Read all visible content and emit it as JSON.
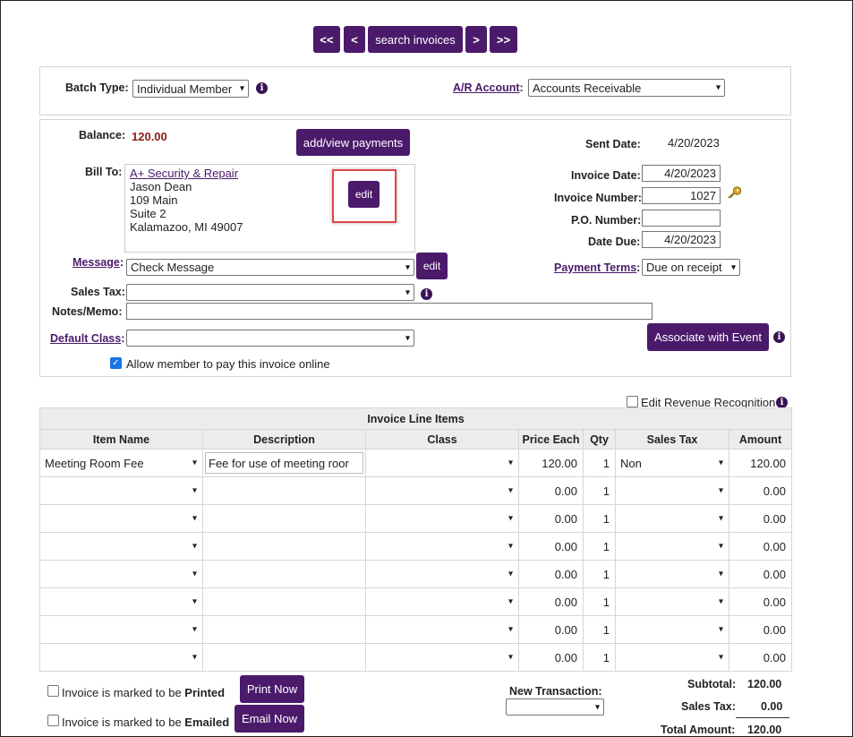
{
  "nav": {
    "first": "<<",
    "prev": "<",
    "search": "search invoices",
    "next": ">",
    "last": ">>"
  },
  "batch": {
    "batch_type_label": "Batch Type:",
    "batch_type_value": "Individual Member",
    "ar_account_label": "A/R Account",
    "ar_account_colon": ":",
    "ar_account_value": "Accounts Receivable"
  },
  "invoice": {
    "balance_label": "Balance:",
    "balance_value": "120.00",
    "add_payments": "add/view payments",
    "bill_to_label": "Bill To:",
    "bill_to_company": "A+ Security & Repair",
    "bill_to_lines": [
      "Jason Dean",
      "109 Main",
      "Suite 2",
      "Kalamazoo, MI 49007"
    ],
    "bill_edit": "edit",
    "message_label": "Message",
    "message_value": "Check Message",
    "message_edit": "edit",
    "sales_tax_label": "Sales Tax:",
    "notes_label": "Notes/Memo:",
    "default_class_label": "Default Class",
    "allow_online": "Allow member to pay this invoice online",
    "sent_date_label": "Sent Date:",
    "sent_date_value": "4/20/2023",
    "invoice_date_label": "Invoice Date:",
    "invoice_date_value": "4/20/2023",
    "invoice_number_label": "Invoice Number:",
    "invoice_number_value": "1027",
    "po_number_label": "P.O. Number:",
    "date_due_label": "Date Due:",
    "date_due_value": "4/20/2023",
    "payment_terms_label": "Payment Terms",
    "payment_terms_value": "Due on receipt",
    "associate_event": "Associate with Event"
  },
  "line_items": {
    "edit_revenue": "Edit Revenue Recognition",
    "caption": "Invoice Line Items",
    "headers": [
      "Item Name",
      "Description",
      "Class",
      "Price Each",
      "Qty",
      "Sales Tax",
      "Amount"
    ],
    "rows": [
      {
        "item": "Meeting Room Fee",
        "desc": "Fee for use of meeting roor",
        "price": "120.00",
        "qty": "1",
        "tax": "Non",
        "amount": "120.00"
      },
      {
        "item": "",
        "desc": "",
        "price": "0.00",
        "qty": "1",
        "tax": "",
        "amount": "0.00"
      },
      {
        "item": "",
        "desc": "",
        "price": "0.00",
        "qty": "1",
        "tax": "",
        "amount": "0.00"
      },
      {
        "item": "",
        "desc": "",
        "price": "0.00",
        "qty": "1",
        "tax": "",
        "amount": "0.00"
      },
      {
        "item": "",
        "desc": "",
        "price": "0.00",
        "qty": "1",
        "tax": "",
        "amount": "0.00"
      },
      {
        "item": "",
        "desc": "",
        "price": "0.00",
        "qty": "1",
        "tax": "",
        "amount": "0.00"
      },
      {
        "item": "",
        "desc": "",
        "price": "0.00",
        "qty": "1",
        "tax": "",
        "amount": "0.00"
      },
      {
        "item": "",
        "desc": "",
        "price": "0.00",
        "qty": "1",
        "tax": "",
        "amount": "0.00"
      }
    ]
  },
  "footer": {
    "printed_prefix": "Invoice is marked to be ",
    "printed_bold": "Printed",
    "print_now": "Print Now",
    "emailed_prefix": "Invoice is marked to be ",
    "emailed_bold": "Emailed",
    "email_now": "Email Now",
    "new_transaction": "New Transaction:",
    "subtotal_label": "Subtotal:",
    "subtotal_value": "120.00",
    "sales_tax_label": "Sales Tax:",
    "sales_tax_value": "0.00",
    "total_label": "Total Amount:",
    "total_value": "120.00"
  },
  "colors": {
    "accent": "#4b1a6b",
    "highlight_box": "#e04646",
    "balance": "#8b1a1a"
  }
}
